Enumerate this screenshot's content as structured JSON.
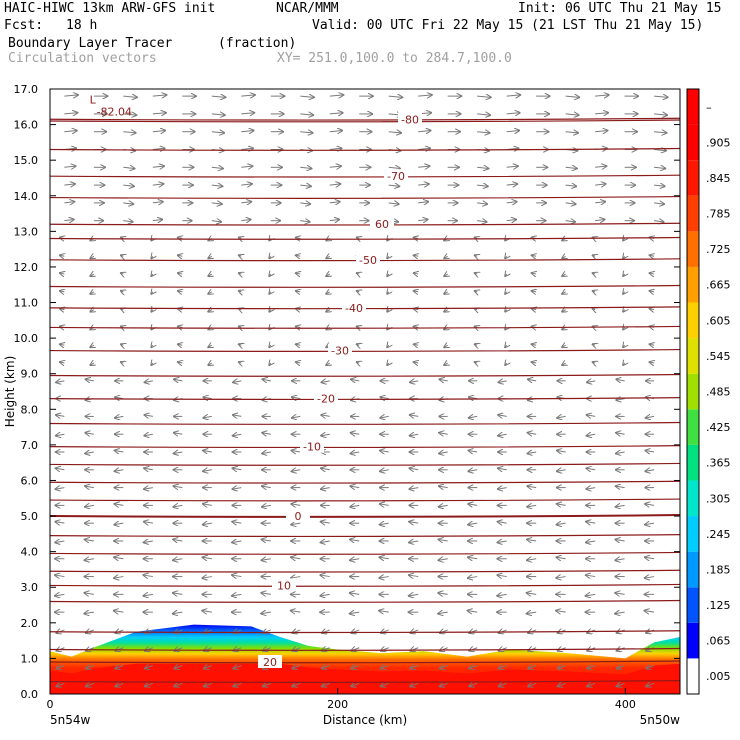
{
  "header": {
    "title_left": "HAIC-HIWC 13km ARW-GFS init",
    "org": "NCAR/MMM",
    "init": "Init: 06 UTC Thu 21 May 15",
    "fcst_label": "Fcst:",
    "fcst_value": "18 h",
    "valid": "Valid: 00 UTC Fri 22 May 15 (21 LST Thu 21 May 15)",
    "field_name": "Boundary Layer Tracer",
    "field_unit": "(fraction)",
    "vectors_label": "Circulation vectors",
    "xy_label": "XY= 251.0,100.0 to 284.7,100.0"
  },
  "chart_data": {
    "type": "cross-section",
    "xlabel": "Distance (km)",
    "ylabel": "Height (km)",
    "xlim": [
      0,
      438
    ],
    "ylim": [
      0,
      17
    ],
    "x_ticks": [
      "0",
      "200",
      "400"
    ],
    "x_tick_values": [
      0,
      200,
      400
    ],
    "x_end_labels": [
      "5n54w",
      "5n50w"
    ],
    "y_ticks": [
      "0.0",
      "1.0",
      "2.0",
      "3.0",
      "4.0",
      "5.0",
      "6.0",
      "7.0",
      "8.0",
      "9.0",
      "10.0",
      "11.0",
      "12.0",
      "13.0",
      "14.0",
      "15.0",
      "16.0",
      "17.0"
    ],
    "colorbar_labels": [
      ".005",
      ".065",
      ".125",
      ".185",
      ".245",
      ".305",
      ".365",
      ".425",
      ".485",
      ".545",
      ".605",
      ".665",
      ".725",
      ".785",
      ".845",
      ".905",
      "–"
    ],
    "colorbar_colors": [
      "#ffffff",
      "#0000ff",
      "#0055ff",
      "#0099ff",
      "#00ccff",
      "#00e5cc",
      "#00e080",
      "#40e040",
      "#a0e000",
      "#e0e000",
      "#ffd000",
      "#ffa000",
      "#ff7000",
      "#ff4000",
      "#ff1800",
      "#ff0000",
      "#ff0000"
    ],
    "temperature_contours": [
      {
        "label": "20",
        "height": 0.9
      },
      {
        "label": "10",
        "height": 3.05
      },
      {
        "label": "0",
        "height": 5.0
      },
      {
        "label": "-10",
        "height": 6.95
      },
      {
        "label": "-20",
        "height": 8.3
      },
      {
        "label": "-30",
        "height": 9.65
      },
      {
        "label": "-40",
        "height": 10.85
      },
      {
        "label": "-50",
        "height": 12.2
      },
      {
        "label": "60",
        "height": 13.2
      },
      {
        "label": "-70",
        "height": 14.55
      },
      {
        "label": "-80",
        "height": 16.15
      }
    ],
    "extra_isotherm_heights": [
      0.35,
      1.25,
      1.75,
      2.6,
      3.45,
      3.95,
      4.45,
      5.45,
      5.95,
      6.45,
      7.6,
      8.95,
      10.3,
      11.45,
      12.8,
      13.95,
      15.3,
      16.1
    ],
    "low_label": {
      "symbol": "L",
      "value": "-82.04",
      "x": 15,
      "y": 16.7
    },
    "tracer_surface": {
      "x": [
        0,
        15,
        30,
        60,
        100,
        140,
        160,
        180,
        200,
        230,
        260,
        290,
        320,
        360,
        400,
        420,
        438
      ],
      "top": [
        1.2,
        1.05,
        1.3,
        1.75,
        1.95,
        1.9,
        1.6,
        1.35,
        1.25,
        1.15,
        1.2,
        1.05,
        1.25,
        1.15,
        1.0,
        1.45,
        1.6
      ]
    }
  }
}
